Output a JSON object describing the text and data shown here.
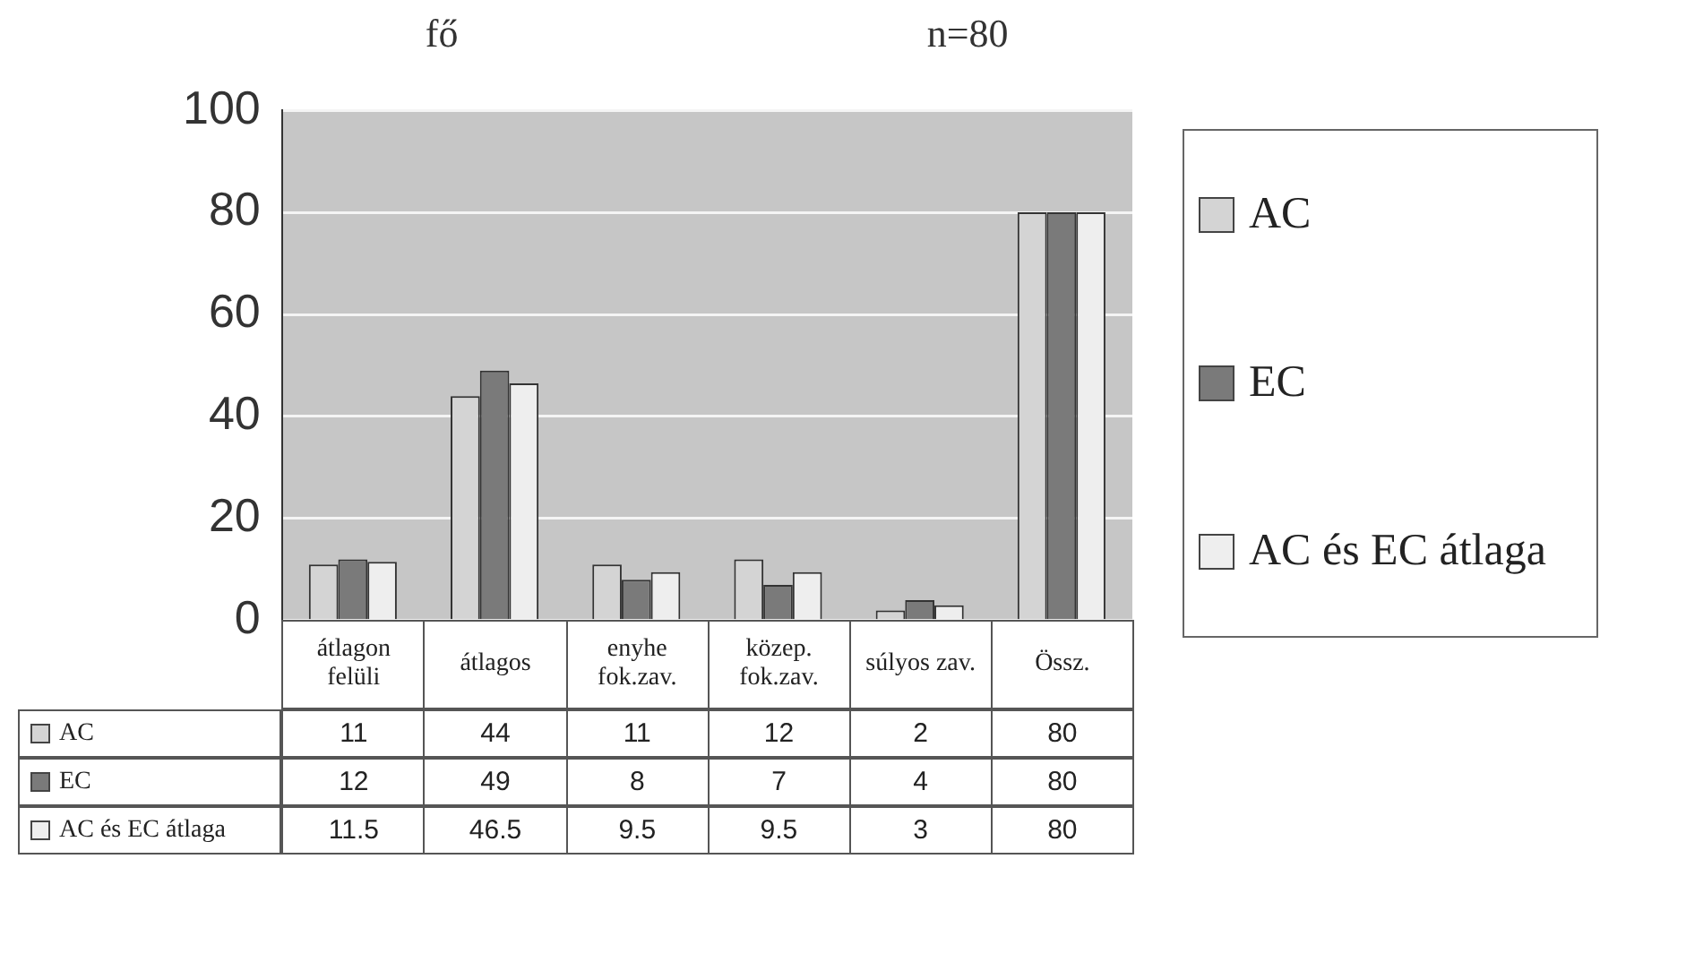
{
  "chart_data": {
    "type": "bar",
    "ylabel": "fő",
    "subtitle": "n=80",
    "categories": [
      "átlagon felüli",
      "átlagos",
      "enyhe fok.zav.",
      "közep. fok.zav.",
      "súlyos zav.",
      "Össz."
    ],
    "series": [
      {
        "name": "AC",
        "color": "#d4d4d4",
        "values": [
          11,
          44,
          11,
          12,
          2,
          80
        ]
      },
      {
        "name": "EC",
        "color": "#7a7a7a",
        "values": [
          12,
          49,
          8,
          7,
          4,
          80
        ]
      },
      {
        "name": "AC és EC átlaga",
        "color": "#eeeeee",
        "values": [
          11.5,
          46.5,
          9.5,
          9.5,
          3,
          80
        ]
      }
    ],
    "ylim": [
      0,
      100
    ],
    "yticks": [
      0,
      20,
      40,
      60,
      80,
      100
    ],
    "grid": "y",
    "legend": "right",
    "data_labels": true
  }
}
